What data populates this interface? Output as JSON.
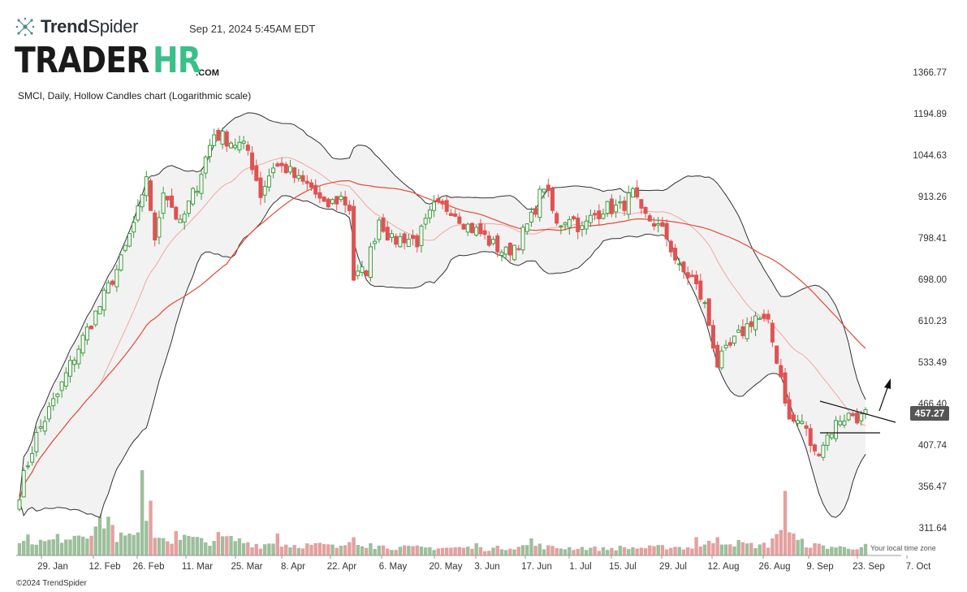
{
  "header": {
    "brand_name_bold": "Trend",
    "brand_name_light": "Spider",
    "timestamp": "Sep 21, 2024 5:45AM EDT",
    "logo_part1": "TRADER",
    "logo_part2": "HR",
    "logo_part3": ".COM"
  },
  "footer": {
    "copyright": "©2024 TrendSpider",
    "timezone_note": "Your local time zone"
  },
  "colors": {
    "up": "#3c9a3c",
    "down": "#e05252",
    "vol_up": "#9cbf9c",
    "vol_down": "#e4a0a0",
    "band_fill": "#f2f2f2",
    "band_line": "#333333",
    "ma20": "#f0a8a0",
    "ma50": "#e34a3a",
    "price_tag": "#555555"
  },
  "chart_data": {
    "type": "candlestick",
    "title": "SMCI, Daily, Hollow Candles chart (Logarithmic scale)",
    "ticker": "SMCI",
    "interval": "Daily",
    "scale": "log",
    "last_price": "457.27",
    "y_ticks": [
      "1366.77",
      "1194.89",
      "1044.63",
      "913.26",
      "798.41",
      "698.00",
      "610.23",
      "533.49",
      "466.40",
      "407.74",
      "356.47",
      "311.64"
    ],
    "x_ticks": [
      "29. Jan",
      "12. Feb",
      "26. Feb",
      "11. Mar",
      "25. Mar",
      "8. Apr",
      "22. Apr",
      "6. May",
      "20. May",
      "3. Jun",
      "17. Jun",
      "1. Jul",
      "15. Jul",
      "29. Jul",
      "12. Aug",
      "26. Aug",
      "9. Sep",
      "23. Sep",
      "7. Oct"
    ],
    "ylim": [
      290,
      1500
    ],
    "anchors": {
      "close": [
        [
          0,
          350
        ],
        [
          4,
          420
        ],
        [
          9,
          480
        ],
        [
          14,
          560
        ],
        [
          19,
          640
        ],
        [
          24,
          740
        ],
        [
          29,
          900
        ],
        [
          30,
          980
        ],
        [
          32,
          780
        ],
        [
          34,
          940
        ],
        [
          38,
          830
        ],
        [
          42,
          950
        ],
        [
          46,
          1120
        ],
        [
          49,
          1100
        ],
        [
          52,
          1080
        ],
        [
          54,
          1060
        ],
        [
          57,
          920
        ],
        [
          60,
          1010
        ],
        [
          63,
          1000
        ],
        [
          66,
          960
        ],
        [
          69,
          940
        ],
        [
          72,
          880
        ],
        [
          76,
          910
        ],
        [
          78,
          880
        ],
        [
          79,
          700
        ],
        [
          82,
          720
        ],
        [
          85,
          850
        ],
        [
          88,
          790
        ],
        [
          91,
          800
        ],
        [
          94,
          790
        ],
        [
          98,
          880
        ],
        [
          102,
          880
        ],
        [
          106,
          830
        ],
        [
          109,
          810
        ],
        [
          112,
          780
        ],
        [
          115,
          760
        ],
        [
          118,
          790
        ],
        [
          121,
          850
        ],
        [
          124,
          950
        ],
        [
          127,
          830
        ],
        [
          130,
          860
        ],
        [
          133,
          820
        ],
        [
          135,
          850
        ],
        [
          138,
          880
        ],
        [
          142,
          880
        ],
        [
          145,
          920
        ],
        [
          147,
          860
        ],
        [
          150,
          840
        ],
        [
          153,
          800
        ],
        [
          156,
          720
        ],
        [
          159,
          700
        ],
        [
          162,
          640
        ],
        [
          165,
          530
        ],
        [
          168,
          560
        ],
        [
          171,
          590
        ],
        [
          174,
          620
        ],
        [
          177,
          600
        ],
        [
          180,
          510
        ],
        [
          182,
          440
        ],
        [
          185,
          440
        ],
        [
          188,
          395
        ],
        [
          191,
          420
        ],
        [
          194,
          445
        ],
        [
          197,
          450
        ],
        [
          199,
          445
        ],
        [
          200,
          457.27
        ]
      ],
      "volume": [
        [
          0,
          14
        ],
        [
          6,
          10
        ],
        [
          12,
          16
        ],
        [
          17,
          20
        ],
        [
          21,
          30
        ],
        [
          23,
          14
        ],
        [
          28,
          14
        ],
        [
          30,
          24
        ],
        [
          33,
          15
        ],
        [
          36,
          12
        ],
        [
          40,
          14
        ],
        [
          44,
          10
        ],
        [
          47,
          14
        ],
        [
          51,
          12
        ],
        [
          54,
          10
        ],
        [
          57,
          8
        ],
        [
          60,
          10
        ],
        [
          64,
          8
        ],
        [
          68,
          8
        ],
        [
          72,
          8
        ],
        [
          76,
          6
        ],
        [
          79,
          14
        ],
        [
          82,
          8
        ],
        [
          86,
          7
        ],
        [
          90,
          6
        ],
        [
          94,
          6
        ],
        [
          98,
          6
        ],
        [
          102,
          6
        ],
        [
          106,
          6
        ],
        [
          110,
          5
        ],
        [
          114,
          6
        ],
        [
          118,
          7
        ],
        [
          122,
          8
        ],
        [
          126,
          6
        ],
        [
          130,
          6
        ],
        [
          134,
          6
        ],
        [
          138,
          5
        ],
        [
          142,
          6
        ],
        [
          146,
          6
        ],
        [
          150,
          6
        ],
        [
          154,
          7
        ],
        [
          158,
          6
        ],
        [
          162,
          8
        ],
        [
          165,
          12
        ],
        [
          169,
          10
        ],
        [
          173,
          8
        ],
        [
          177,
          8
        ],
        [
          180,
          22
        ],
        [
          183,
          12
        ],
        [
          187,
          8
        ],
        [
          191,
          7
        ],
        [
          195,
          6
        ],
        [
          200,
          7
        ]
      ],
      "spikes": [
        [
          1,
          12
        ],
        [
          26,
          18
        ],
        [
          29,
          70
        ],
        [
          31,
          45
        ],
        [
          37,
          20
        ],
        [
          61,
          18
        ],
        [
          79,
          15
        ],
        [
          83,
          10
        ],
        [
          108,
          10
        ],
        [
          121,
          14
        ],
        [
          160,
          15
        ],
        [
          165,
          15
        ],
        [
          178,
          14
        ],
        [
          181,
          53
        ],
        [
          183,
          18
        ]
      ]
    }
  }
}
